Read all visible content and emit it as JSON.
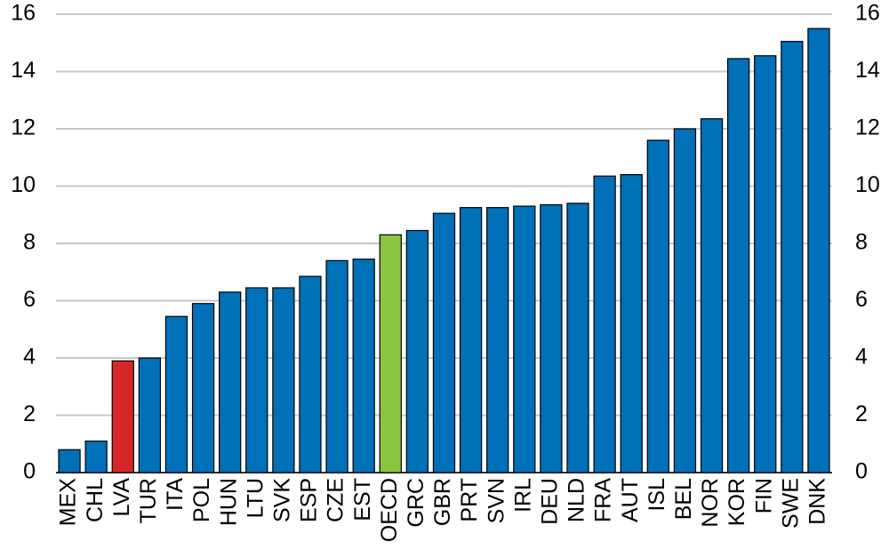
{
  "chart_data": {
    "type": "bar",
    "categories": [
      "MEX",
      "CHL",
      "LVA",
      "TUR",
      "ITA",
      "POL",
      "HUN",
      "LTU",
      "SVK",
      "ESP",
      "CZE",
      "EST",
      "OECD",
      "GRC",
      "GBR",
      "PRT",
      "SVN",
      "IRL",
      "DEU",
      "NLD",
      "FRA",
      "AUT",
      "ISL",
      "BEL",
      "NOR",
      "KOR",
      "FIN",
      "SWE",
      "DNK"
    ],
    "values": [
      0.8,
      1.1,
      3.9,
      4.0,
      5.45,
      5.9,
      6.3,
      6.45,
      6.45,
      6.85,
      7.4,
      7.45,
      8.3,
      8.45,
      9.05,
      9.25,
      9.25,
      9.3,
      9.35,
      9.4,
      10.35,
      10.4,
      11.6,
      12.0,
      12.35,
      14.45,
      14.55,
      15.05,
      15.5
    ],
    "colors": [
      "#0070b8",
      "#0070b8",
      "#d62728",
      "#0070b8",
      "#0070b8",
      "#0070b8",
      "#0070b8",
      "#0070b8",
      "#0070b8",
      "#0070b8",
      "#0070b8",
      "#0070b8",
      "#8cc43f",
      "#0070b8",
      "#0070b8",
      "#0070b8",
      "#0070b8",
      "#0070b8",
      "#0070b8",
      "#0070b8",
      "#0070b8",
      "#0070b8",
      "#0070b8",
      "#0070b8",
      "#0070b8",
      "#0070b8",
      "#0070b8",
      "#0070b8",
      "#0070b8"
    ],
    "ylim": [
      0,
      16
    ],
    "yticks": [
      0,
      2,
      4,
      6,
      8,
      10,
      12,
      14,
      16
    ],
    "y2lim": [
      0,
      16
    ],
    "y2ticks": [
      0,
      2,
      4,
      6,
      8,
      10,
      12,
      14,
      16
    ],
    "grid": true
  }
}
